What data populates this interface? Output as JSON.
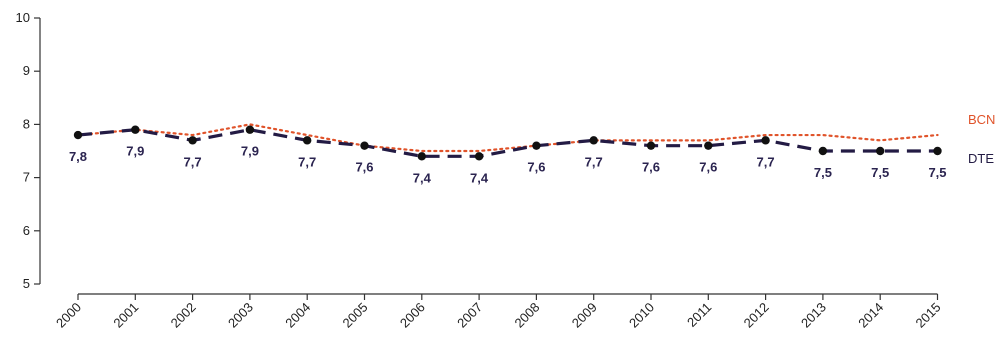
{
  "chart_data": {
    "type": "line",
    "categories": [
      "2000",
      "2001",
      "2002",
      "2003",
      "2004",
      "2005",
      "2006",
      "2007",
      "2008",
      "2009",
      "2010",
      "2011",
      "2012",
      "2013",
      "2014",
      "2015"
    ],
    "ylim": [
      5,
      10
    ],
    "yticks": [
      "5",
      "6",
      "7",
      "8",
      "9",
      "10"
    ],
    "grid": false,
    "series": [
      {
        "name": "BCN",
        "style": "dotted",
        "color": "#e0532a",
        "values": [
          7.8,
          7.9,
          7.8,
          8.0,
          7.8,
          7.6,
          7.5,
          7.5,
          7.6,
          7.7,
          7.7,
          7.7,
          7.8,
          7.8,
          7.7,
          7.8
        ]
      },
      {
        "name": "DTE",
        "style": "dashed",
        "color": "#231b44",
        "values": [
          7.8,
          7.9,
          7.7,
          7.9,
          7.7,
          7.6,
          7.4,
          7.4,
          7.6,
          7.7,
          7.6,
          7.6,
          7.7,
          7.5,
          7.5,
          7.5
        ],
        "labels": [
          "7,8",
          "7,9",
          "7,7",
          "7,9",
          "7,7",
          "7,6",
          "7,4",
          "7,4",
          "7,6",
          "7,7",
          "7,6",
          "7,6",
          "7,7",
          "7,5",
          "7,5",
          "7,5"
        ]
      }
    ]
  }
}
